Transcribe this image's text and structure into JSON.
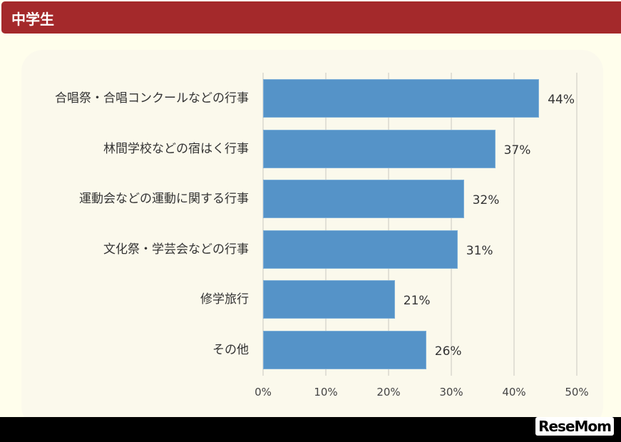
{
  "header": {
    "title": "中学生"
  },
  "chart_data": {
    "type": "bar",
    "orientation": "horizontal",
    "title": "中学生",
    "categories": [
      "合唱祭・合唱コンクールなどの行事",
      "林間学校などの宿はく行事",
      "運動会などの運動に関する行事",
      "文化祭・学芸会などの行事",
      "修学旅行",
      "その他"
    ],
    "values": [
      44,
      37,
      32,
      31,
      21,
      26
    ],
    "value_labels": [
      "44%",
      "37%",
      "32%",
      "31%",
      "21%",
      "26%"
    ],
    "xlabel": "",
    "ylabel": "",
    "xlim": [
      0,
      50
    ],
    "x_ticks": [
      "0%",
      "10%",
      "20%",
      "30%",
      "40%",
      "50%"
    ],
    "grid": true,
    "legend": null,
    "bar_color": "#5593c8"
  },
  "colors": {
    "header_bg": "#a4292b",
    "page_bg": "#fffeec",
    "panel_bg": "#fbf9ec",
    "bar": "#5593c8"
  },
  "footer": {
    "logo_text": "ReseMom"
  }
}
